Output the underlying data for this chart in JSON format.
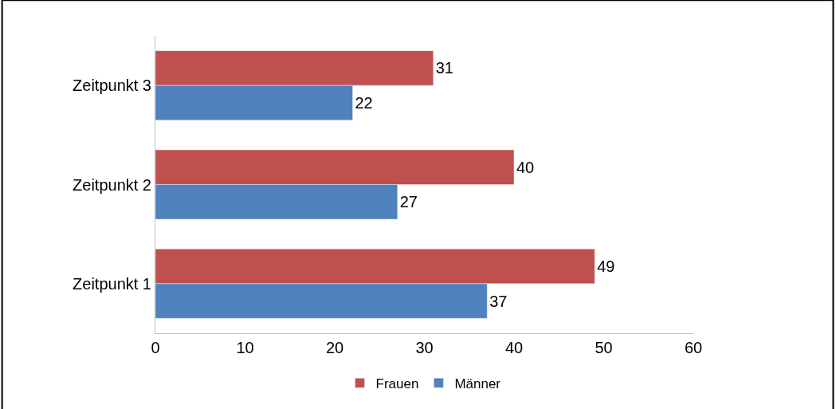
{
  "chart_data": {
    "type": "bar",
    "orientation": "horizontal",
    "categories": [
      "Zeitpunkt 3",
      "Zeitpunkt 2",
      "Zeitpunkt 1"
    ],
    "series": [
      {
        "name": "Frauen",
        "color": "#c0504d",
        "values": [
          31,
          40,
          49
        ]
      },
      {
        "name": "Männer",
        "color": "#4f81bd",
        "values": [
          22,
          27,
          37
        ]
      }
    ],
    "xlim": [
      0,
      60
    ],
    "xticks": [
      0,
      10,
      20,
      30,
      40,
      50,
      60
    ],
    "data_labels": true,
    "legend": "bottom"
  }
}
